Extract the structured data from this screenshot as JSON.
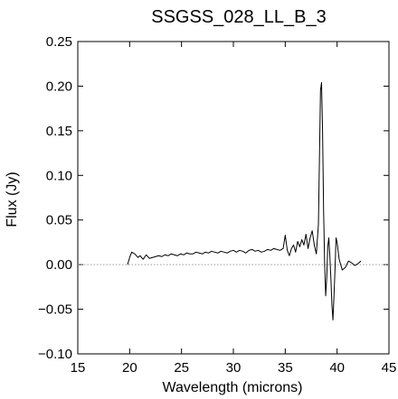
{
  "chart_data": {
    "type": "line",
    "title": "SSGSS_028_LL_B_3",
    "xlabel": "Wavelength (microns)",
    "ylabel": "Flux (Jy)",
    "xlim": [
      15,
      45
    ],
    "ylim": [
      -0.1,
      0.25
    ],
    "xticks": [
      15,
      20,
      25,
      30,
      35,
      40,
      45
    ],
    "xtick_labels": [
      "15",
      "20",
      "25",
      "30",
      "35",
      "40",
      "45"
    ],
    "yticks": [
      -0.1,
      -0.05,
      0.0,
      0.05,
      0.1,
      0.15,
      0.2,
      0.25
    ],
    "ytick_labels": [
      "−0.10",
      "−0.05",
      "0.00",
      "0.05",
      "0.10",
      "0.15",
      "0.20",
      "0.25"
    ],
    "grid": false,
    "series": [
      {
        "values_x": [
          19.8,
          20.0,
          20.2,
          20.5,
          20.8,
          21.0,
          21.3,
          21.6,
          21.9,
          22.2,
          22.5,
          22.8,
          23.1,
          23.4,
          23.7,
          24.0,
          24.3,
          24.6,
          24.9,
          25.2,
          25.5,
          25.8,
          26.1,
          26.4,
          26.7,
          27.0,
          27.3,
          27.6,
          27.9,
          28.2,
          28.5,
          28.8,
          29.1,
          29.4,
          29.7,
          30.0,
          30.3,
          30.6,
          30.9,
          31.2,
          31.5,
          31.8,
          32.1,
          32.4,
          32.7,
          33.0,
          33.3,
          33.6,
          33.9,
          34.2,
          34.5,
          34.8,
          35.0,
          35.2,
          35.4,
          35.6,
          35.8,
          36.0,
          36.2,
          36.4,
          36.6,
          36.8,
          37.0,
          37.2,
          37.4,
          37.6,
          37.8,
          38.0,
          38.2,
          38.4,
          38.5,
          38.6,
          38.7,
          38.8,
          38.9,
          39.0,
          39.1,
          39.2,
          39.3,
          39.4,
          39.5,
          39.6,
          39.7,
          39.8,
          39.9,
          40.0,
          40.2,
          40.5,
          40.8,
          41.1,
          41.4,
          41.7,
          42.0,
          42.3
        ],
        "values_y": [
          0.0,
          0.008,
          0.014,
          0.012,
          0.008,
          0.01,
          0.006,
          0.011,
          0.007,
          0.008,
          0.009,
          0.01,
          0.009,
          0.011,
          0.01,
          0.012,
          0.011,
          0.01,
          0.012,
          0.011,
          0.013,
          0.012,
          0.012,
          0.014,
          0.013,
          0.012,
          0.014,
          0.013,
          0.015,
          0.014,
          0.013,
          0.015,
          0.014,
          0.013,
          0.015,
          0.016,
          0.014,
          0.016,
          0.015,
          0.013,
          0.016,
          0.017,
          0.015,
          0.016,
          0.014,
          0.015,
          0.017,
          0.016,
          0.018,
          0.017,
          0.016,
          0.018,
          0.033,
          0.016,
          0.01,
          0.018,
          0.022,
          0.014,
          0.026,
          0.02,
          0.028,
          0.022,
          0.034,
          0.018,
          0.03,
          0.038,
          0.022,
          0.012,
          0.045,
          0.195,
          0.204,
          0.15,
          0.06,
          0.0,
          -0.035,
          -0.015,
          0.02,
          0.03,
          0.01,
          -0.015,
          -0.045,
          -0.062,
          -0.035,
          -0.005,
          0.03,
          0.025,
          0.006,
          -0.006,
          -0.003,
          0.004,
          0.002,
          -0.001,
          0.001,
          0.004
        ]
      }
    ],
    "reference_line": {
      "y": 0.0,
      "style": "dotted",
      "color": "#999999"
    },
    "line_color": "#000000"
  }
}
